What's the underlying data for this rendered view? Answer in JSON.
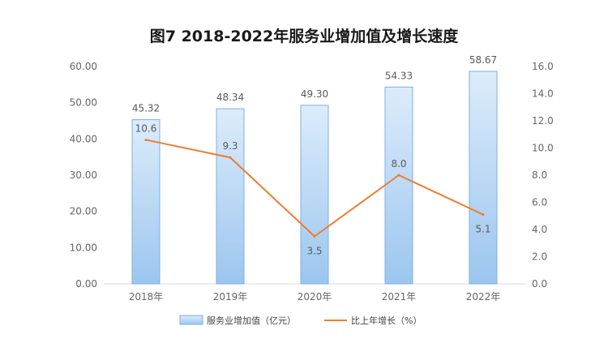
{
  "chart_data": {
    "type": "bar",
    "title": "图7  2018-2022年服务业增加值及增长速度",
    "categories": [
      "2018年",
      "2019年",
      "2020年",
      "2021年",
      "2022年"
    ],
    "series": [
      {
        "name": "服务业增加值（亿元）",
        "type": "bar",
        "axis": "left",
        "values": [
          45.32,
          48.34,
          49.3,
          54.33,
          58.67
        ],
        "labels": [
          "45.32",
          "48.34",
          "49.30",
          "54.33",
          "58.67"
        ]
      },
      {
        "name": "比上年增长（%）",
        "type": "line",
        "axis": "right",
        "values": [
          10.6,
          9.3,
          3.5,
          8.0,
          5.1
        ],
        "labels": [
          "10.6",
          "9.3",
          "3.5",
          "8.0",
          "5.1"
        ]
      }
    ],
    "y_left": {
      "ylim": [
        0,
        60
      ],
      "ticks": [
        "0.00",
        "10.00",
        "20.00",
        "30.00",
        "40.00",
        "50.00",
        "60.00"
      ]
    },
    "y_right": {
      "ylim": [
        0,
        16
      ],
      "ticks": [
        "0.0",
        "2.0",
        "4.0",
        "6.0",
        "8.0",
        "10.0",
        "12.0",
        "14.0",
        "16.0"
      ]
    },
    "grid": false,
    "legend_position": "bottom",
    "colors": {
      "bar_fill_top": "#dcecfb",
      "bar_fill_bottom": "#9cc6ef",
      "bar_stroke": "#7fb0e0",
      "line": "#ed7d31",
      "axis": "#d9d9d9"
    }
  }
}
